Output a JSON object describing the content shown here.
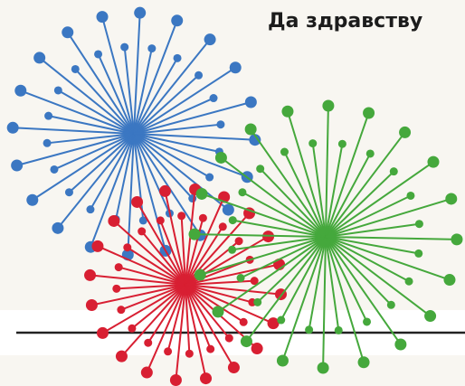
{
  "heading": "Да здравству"
}
